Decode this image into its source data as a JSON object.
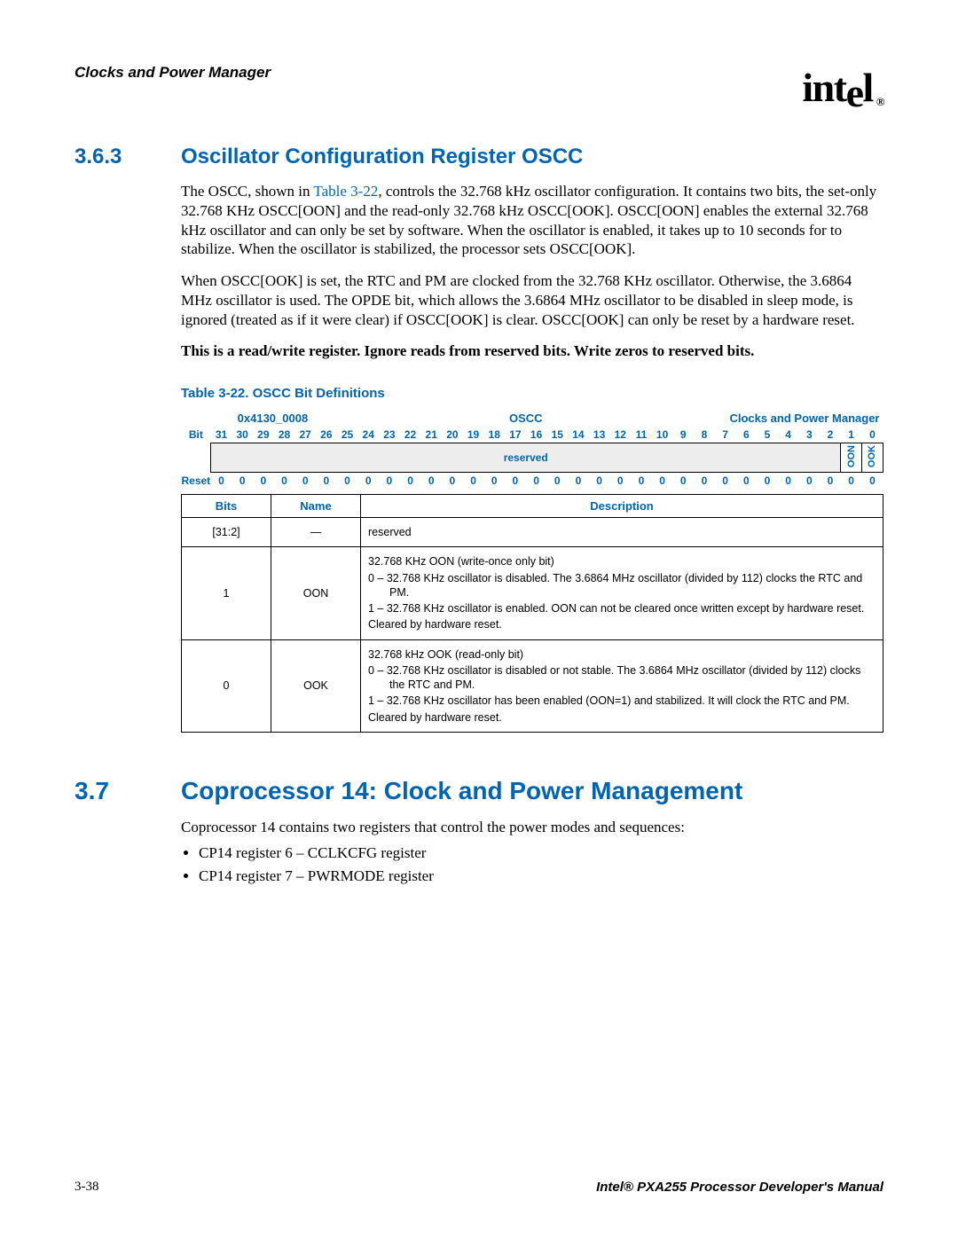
{
  "header": {
    "title": "Clocks and Power Manager",
    "logo": "intel",
    "reg": "®"
  },
  "s363": {
    "num": "3.6.3",
    "title": "Oscillator Configuration Register OSCC",
    "p1a": "The OSCC, shown in ",
    "p1link": "Table 3-22",
    "p1b": ", controls the 32.768 kHz oscillator configuration. It contains two bits, the set-only 32.768 KHz OSCC[OON] and the read-only 32.768 kHz OSCC[OOK]. OSCC[OON] enables the external 32.768 kHz oscillator and can only be set by software. When the oscillator is enabled, it takes up to 10 seconds for to stabilize. When the oscillator is stabilized, the processor sets OSCC[OOK].",
    "p2": "When OSCC[OOK] is set, the RTC and PM are clocked from the 32.768 KHz oscillator. Otherwise, the 3.6864 MHz oscillator is used. The OPDE bit, which allows the 3.6864 MHz oscillator to be disabled in sleep mode, is ignored (treated as if it were clear) if OSCC[OOK] is clear. OSCC[OOK] can only be reset by a hardware reset.",
    "p3": "This is a read/write register. Ignore reads from reserved bits. Write zeros to reserved bits."
  },
  "table": {
    "caption": "Table 3-22. OSCC Bit Definitions",
    "addr": "0x4130_0008",
    "regname": "OSCC",
    "module": "Clocks and Power Manager",
    "bit_label": "Bit",
    "reset_label": "Reset",
    "reserved": "reserved",
    "oon": "OON",
    "ook": "OOK",
    "bits": [
      "31",
      "30",
      "29",
      "28",
      "27",
      "26",
      "25",
      "24",
      "23",
      "22",
      "21",
      "20",
      "19",
      "18",
      "17",
      "16",
      "15",
      "14",
      "13",
      "12",
      "11",
      "10",
      "9",
      "8",
      "7",
      "6",
      "5",
      "4",
      "3",
      "2",
      "1",
      "0"
    ],
    "reset": [
      "0",
      "0",
      "0",
      "0",
      "0",
      "0",
      "0",
      "0",
      "0",
      "0",
      "0",
      "0",
      "0",
      "0",
      "0",
      "0",
      "0",
      "0",
      "0",
      "0",
      "0",
      "0",
      "0",
      "0",
      "0",
      "0",
      "0",
      "0",
      "0",
      "0",
      "0",
      "0"
    ],
    "cols": {
      "bits": "Bits",
      "name": "Name",
      "desc": "Description"
    },
    "rows": [
      {
        "bits": "[31:2]",
        "name": "—",
        "desc": [
          {
            "t": "reserved"
          }
        ]
      },
      {
        "bits": "1",
        "name": "OON",
        "desc": [
          {
            "t": "32.768 KHz OON (write-once only bit)"
          },
          {
            "t": "0 –  32.768 KHz oscillator is disabled. The 3.6864 MHz oscillator (divided by 112) clocks the RTC and PM.",
            "i": true
          },
          {
            "t": "1 –  32.768 KHz oscillator is enabled. OON can not be cleared once written except by hardware reset.",
            "i": true
          },
          {
            "t": "Cleared by hardware reset."
          }
        ]
      },
      {
        "bits": "0",
        "name": "OOK",
        "desc": [
          {
            "t": "32.768 kHz OOK (read-only bit)"
          },
          {
            "t": "0 –  32.768 KHz oscillator is disabled or not stable. The 3.6864 MHz oscillator (divided by 112) clocks the RTC and PM.",
            "i": true
          },
          {
            "t": "1 –  32.768 KHz oscillator has been enabled (OON=1) and stabilized. It will clock the RTC and PM.",
            "i": true
          },
          {
            "t": "Cleared by hardware reset."
          }
        ]
      }
    ]
  },
  "s37": {
    "num": "3.7",
    "title": "Coprocessor 14: Clock and Power Management",
    "p1": "Coprocessor 14 contains two registers that control the power modes and sequences:",
    "b1": "CP14 register 6 – CCLKCFG register",
    "b2": "CP14 register 7 – PWRMODE register"
  },
  "footer": {
    "left": "3-38",
    "right": "Intel® PXA255 Processor Developer's Manual"
  }
}
